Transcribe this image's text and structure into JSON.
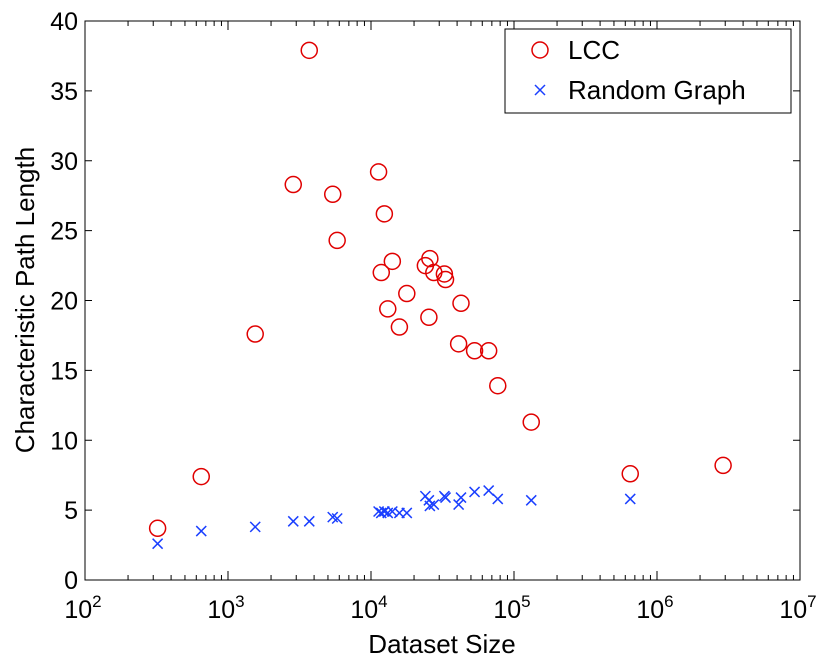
{
  "chart_data": {
    "type": "scatter",
    "title": "",
    "xlabel": "Dataset Size",
    "ylabel": "Characteristic Path Length",
    "xscale": "log",
    "xlim": [
      100,
      10000000
    ],
    "ylim": [
      0,
      40
    ],
    "x_ticks": [
      {
        "value": 100,
        "base": "10",
        "exp": "2"
      },
      {
        "value": 1000,
        "base": "10",
        "exp": "3"
      },
      {
        "value": 10000,
        "base": "10",
        "exp": "4"
      },
      {
        "value": 100000,
        "base": "10",
        "exp": "5"
      },
      {
        "value": 1000000,
        "base": "10",
        "exp": "6"
      },
      {
        "value": 10000000,
        "base": "10",
        "exp": "7"
      }
    ],
    "y_ticks": [
      "0",
      "5",
      "10",
      "15",
      "20",
      "25",
      "30",
      "35",
      "40"
    ],
    "legend_position": "top-right",
    "series": [
      {
        "name": "LCC",
        "marker": "circle",
        "color": "#e00000",
        "points": [
          [
            322,
            3.7
          ],
          [
            650,
            7.4
          ],
          [
            1550,
            17.6
          ],
          [
            2860,
            28.3
          ],
          [
            3700,
            37.9
          ],
          [
            5400,
            27.6
          ],
          [
            5800,
            24.3
          ],
          [
            11300,
            29.2
          ],
          [
            11800,
            22.0
          ],
          [
            12400,
            26.2
          ],
          [
            13100,
            19.4
          ],
          [
            14100,
            22.8
          ],
          [
            15800,
            18.1
          ],
          [
            17800,
            20.5
          ],
          [
            24000,
            22.5
          ],
          [
            25400,
            18.8
          ],
          [
            25800,
            23.0
          ],
          [
            27500,
            22.0
          ],
          [
            32600,
            21.9
          ],
          [
            33200,
            21.5
          ],
          [
            41000,
            16.9
          ],
          [
            42600,
            19.8
          ],
          [
            53000,
            16.4
          ],
          [
            66500,
            16.4
          ],
          [
            77000,
            13.9
          ],
          [
            132000,
            11.3
          ],
          [
            650000,
            7.6
          ],
          [
            2900000,
            8.2
          ]
        ]
      },
      {
        "name": "Random Graph",
        "marker": "x",
        "color": "#1a3fff",
        "points": [
          [
            322,
            2.6
          ],
          [
            650,
            3.5
          ],
          [
            1550,
            3.8
          ],
          [
            2860,
            4.2
          ],
          [
            3700,
            4.2
          ],
          [
            5400,
            4.5
          ],
          [
            5800,
            4.4
          ],
          [
            11300,
            4.9
          ],
          [
            11800,
            4.8
          ],
          [
            12400,
            4.9
          ],
          [
            13100,
            4.8
          ],
          [
            14100,
            4.9
          ],
          [
            15800,
            4.8
          ],
          [
            17800,
            4.8
          ],
          [
            24000,
            6.0
          ],
          [
            25400,
            5.7
          ],
          [
            25800,
            5.3
          ],
          [
            27500,
            5.4
          ],
          [
            32600,
            6.0
          ],
          [
            33200,
            5.9
          ],
          [
            41000,
            5.4
          ],
          [
            42600,
            5.9
          ],
          [
            53000,
            6.3
          ],
          [
            66500,
            6.4
          ],
          [
            77000,
            5.8
          ],
          [
            132000,
            5.7
          ],
          [
            650000,
            5.8
          ]
        ]
      }
    ]
  }
}
